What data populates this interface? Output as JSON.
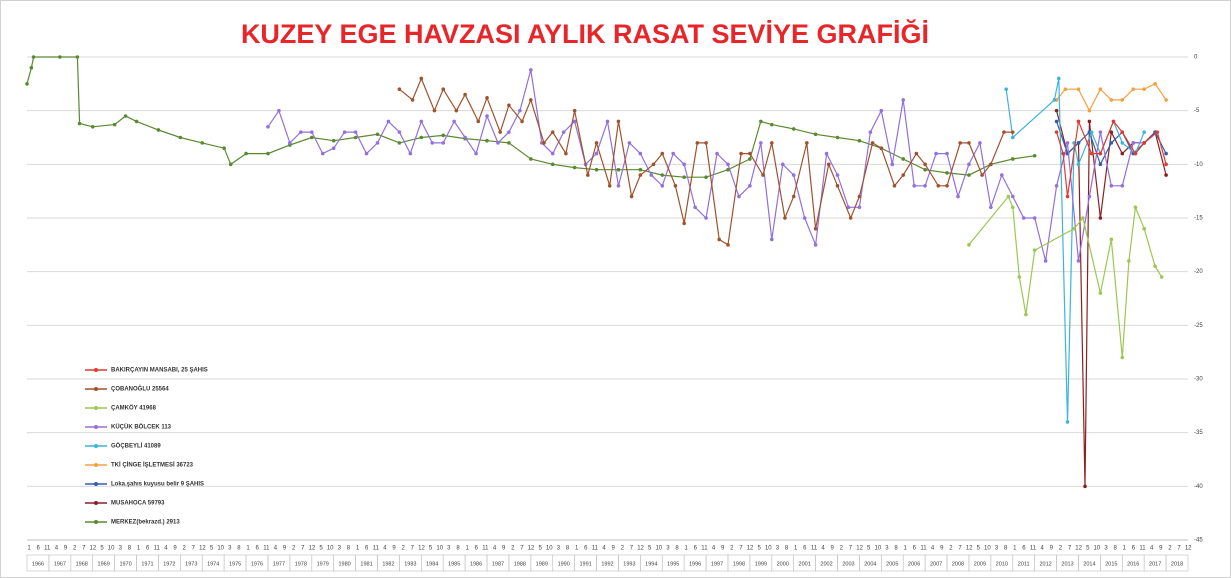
{
  "chart_data": {
    "type": "line",
    "title": "KUZEY EGE HAVZASI AYLIK RASAT SEVİYE GRAFİĞİ",
    "xlim": [
      1966,
      2019
    ],
    "ylim": [
      -45,
      0
    ],
    "yticks": [
      0,
      -5,
      -10,
      -15,
      -20,
      -25,
      -30,
      -35,
      -40,
      -45
    ],
    "xticks": [
      1966,
      1967,
      1968,
      1969,
      1970,
      1971,
      1972,
      1973,
      1974,
      1975,
      1976,
      1977,
      1978,
      1979,
      1980,
      1981,
      1982,
      1983,
      1984,
      1985,
      1986,
      1987,
      1988,
      1989,
      1990,
      1991,
      1992,
      1993,
      1994,
      1995,
      1996,
      1997,
      1998,
      1999,
      2000,
      2001,
      2002,
      2003,
      2004,
      2005,
      2006,
      2007,
      2008,
      2009,
      2010,
      2011,
      2012,
      2013,
      2014,
      2015,
      2016,
      2017,
      2018
    ],
    "xminor_labels": [
      "1",
      "6",
      "11",
      "4",
      "9",
      "2",
      "7",
      "12",
      "5",
      "10",
      "3",
      "8",
      "1",
      "6",
      "11",
      "4",
      "9",
      "2",
      "7",
      "12",
      "5",
      "10",
      "3",
      "8",
      "1",
      "6",
      "11",
      "4",
      "9",
      "2",
      "7",
      "12",
      "5",
      "10",
      "3",
      "8",
      "1",
      "6",
      "11",
      "4",
      "9",
      "2",
      "7",
      "12",
      "5",
      "10",
      "3",
      "8",
      "1",
      "6",
      "11",
      "4",
      "9",
      "2",
      "7",
      "12",
      "5",
      "10",
      "3",
      "8",
      "1",
      "6",
      "11",
      "4",
      "9",
      "2",
      "7",
      "12",
      "5",
      "10",
      "3",
      "8",
      "1",
      "6",
      "11",
      "4",
      "9",
      "2",
      "7",
      "12",
      "5",
      "10",
      "3",
      "8",
      "1",
      "6",
      "11",
      "4",
      "9",
      "2",
      "7",
      "12",
      "5",
      "10",
      "3",
      "8",
      "1",
      "6",
      "11",
      "4",
      "9",
      "2",
      "7",
      "12",
      "5",
      "10",
      "3",
      "8",
      "1",
      "6",
      "11",
      "4",
      "9",
      "2",
      "7",
      "12",
      "5",
      "10",
      "3",
      "8",
      "1",
      "6",
      "11",
      "4",
      "9",
      "2",
      "7",
      "12"
    ],
    "grid": true,
    "legend": "left",
    "series": [
      {
        "name": "BAKIRÇAYIN MANSABI, 25 ŞAHIS",
        "color": "#e23b2e",
        "x": [
          2013.0,
          2013.3,
          2013.5,
          2014.0,
          2014.6,
          2015.0,
          2015.6,
          2016.0,
          2016.6,
          2017.0,
          2017.6,
          2018.0
        ],
        "values": [
          -7,
          -9,
          -13,
          -6,
          -9,
          -9,
          -6,
          -7,
          -9,
          -8,
          -7,
          -10
        ]
      },
      {
        "name": "ÇOBANOĞLU 25564",
        "color": "#a0522d",
        "x": [
          1983.0,
          1983.6,
          1984.0,
          1984.6,
          1985.0,
          1985.6,
          1986.0,
          1986.6,
          1987.0,
          1987.6,
          1988.0,
          1988.6,
          1989.0,
          1989.6,
          1990.0,
          1990.6,
          1991.0,
          1991.6,
          1992.0,
          1992.6,
          1993.0,
          1993.6,
          1994.0,
          1994.6,
          1995.0,
          1995.6,
          1996.0,
          1996.6,
          1997.0,
          1997.6,
          1998.0,
          1998.6,
          1999.0,
          1999.6,
          2000.0,
          2000.6,
          2001.0,
          2001.6,
          2002.0,
          2002.6,
          2003.0,
          2003.6,
          2004.0,
          2004.6,
          2005.0,
          2005.6,
          2006.0,
          2006.6,
          2007.0,
          2007.6,
          2008.0,
          2008.6,
          2009.0,
          2009.6,
          2010.0,
          2010.6,
          2011.0
        ],
        "values": [
          -3,
          -4,
          -2,
          -5,
          -3,
          -5,
          -3.5,
          -6,
          -3.8,
          -7,
          -4.5,
          -6,
          -4,
          -8,
          -7,
          -9,
          -5,
          -11,
          -8,
          -12,
          -6,
          -13,
          -11,
          -10,
          -9,
          -12,
          -15.5,
          -8,
          -8,
          -17,
          -17.5,
          -9,
          -9,
          -11,
          -8,
          -15,
          -13,
          -8,
          -16,
          -10,
          -12,
          -15,
          -13,
          -8,
          -8.5,
          -12,
          -11,
          -9,
          -10,
          -12,
          -12,
          -8,
          -8,
          -11,
          -10,
          -7,
          -7
        ]
      },
      {
        "name": "ÇAMKÖY 41968",
        "color": "#9bc850",
        "x": [
          2009.0,
          2010.8,
          2011.0,
          2011.3,
          2011.6,
          2012.0,
          2013.8,
          2014.2,
          2015.0,
          2015.5,
          2016.0,
          2016.3,
          2016.6,
          2017.0,
          2017.5,
          2017.8
        ],
        "values": [
          -17.5,
          -13,
          -14,
          -20.5,
          -24,
          -18,
          -16,
          -15,
          -22,
          -17,
          -28,
          -19,
          -14,
          -16,
          -19.5,
          -20.5
        ]
      },
      {
        "name": "KÜÇÜK BÖLCEK 113",
        "color": "#9370db",
        "x": [
          1977.0,
          1977.5,
          1978.0,
          1978.5,
          1979.0,
          1979.5,
          1980.0,
          1980.5,
          1981.0,
          1981.5,
          1982.0,
          1982.5,
          1983.0,
          1983.5,
          1984.0,
          1984.5,
          1985.0,
          1985.5,
          1986.0,
          1986.5,
          1987.0,
          1987.5,
          1988.0,
          1988.5,
          1989.0,
          1989.5,
          1990.0,
          1990.5,
          1991.0,
          1991.5,
          1992.0,
          1992.5,
          1993.0,
          1993.5,
          1994.0,
          1994.5,
          1995.0,
          1995.5,
          1996.0,
          1996.5,
          1997.0,
          1997.5,
          1998.0,
          1998.5,
          1999.0,
          1999.5,
          2000.0,
          2000.5,
          2001.0,
          2001.5,
          2002.0,
          2002.5,
          2003.0,
          2003.5,
          2004.0,
          2004.5,
          2005.0,
          2005.5,
          2006.0,
          2006.5,
          2007.0,
          2007.5,
          2008.0,
          2008.5,
          2009.0,
          2009.5,
          2010.0,
          2010.5,
          2011.0,
          2011.5,
          2012.0,
          2012.5,
          2013.0,
          2013.5,
          2014.0,
          2014.5,
          2015.0,
          2015.5,
          2016.0,
          2016.5,
          2017.0
        ],
        "values": [
          -6.5,
          -5,
          -8,
          -7,
          -7,
          -9,
          -8.5,
          -7,
          -7,
          -9,
          -8,
          -6,
          -7,
          -9,
          -6,
          -8,
          -8,
          -6,
          -7.5,
          -9,
          -5.5,
          -8,
          -7,
          -5,
          -1.2,
          -8,
          -9,
          -7,
          -6,
          -10,
          -9,
          -6,
          -12,
          -8,
          -9,
          -11,
          -12,
          -9,
          -10,
          -14,
          -15,
          -9,
          -10,
          -13,
          -12,
          -8,
          -17,
          -10,
          -11,
          -15,
          -17.5,
          -9,
          -11,
          -14,
          -14,
          -7,
          -5,
          -10,
          -4,
          -12,
          -12,
          -9,
          -9,
          -13,
          -10,
          -8,
          -14,
          -11,
          -13,
          -15,
          -15,
          -19,
          -12,
          -8,
          -19,
          -13,
          -7,
          -12,
          -12,
          -8,
          -8
        ]
      },
      {
        "name": "GÖÇBEYLİ 41089",
        "color": "#3cb4dc",
        "x": [
          2010.7,
          2011.0,
          2012.9,
          2013.1,
          2013.5,
          2013.8,
          2014.0,
          2014.6,
          2015.0,
          2015.6,
          2016.0,
          2016.6,
          2017.0
        ],
        "values": [
          -3,
          -7.5,
          -4,
          -2,
          -34,
          -8,
          -10,
          -7,
          -9,
          -6,
          -8,
          -9,
          -7
        ]
      },
      {
        "name": "TKİ ÇİNGE İŞLETMESİ 36723",
        "color": "#f5a040",
        "x": [
          2013.0,
          2013.4,
          2014.0,
          2014.5,
          2015.0,
          2015.5,
          2016.0,
          2016.5,
          2017.0,
          2017.5,
          2018.0
        ],
        "values": [
          -4,
          -3,
          -3,
          -5,
          -3,
          -4,
          -4,
          -3,
          -3,
          -2.5,
          -4
        ]
      },
      {
        "name": "Loka.şahıs kuyusu belir 9 ŞAHIS",
        "color": "#2f5fb0",
        "x": [
          2013.0,
          2013.5,
          2014.0,
          2014.5,
          2015.0,
          2015.5,
          2016.0,
          2016.5,
          2017.0,
          2017.5,
          2018.0
        ],
        "values": [
          -6,
          -9,
          -8,
          -7,
          -10,
          -8,
          -7,
          -9,
          -8,
          -7,
          -9
        ]
      },
      {
        "name": "MUSAHOCA 59793",
        "color": "#8b2020",
        "x": [
          2013.0,
          2013.5,
          2014.0,
          2014.3,
          2014.5,
          2015.0,
          2015.5,
          2016.0,
          2016.5,
          2017.0,
          2017.5,
          2018.0
        ],
        "values": [
          -5,
          -9,
          -8,
          -40,
          -6,
          -15,
          -7,
          -9,
          -8,
          -8,
          -7,
          -11
        ]
      },
      {
        "name": "MERKEZ(bekrazd.) 2913",
        "color": "#5a8a30",
        "x": [
          1966.0,
          1966.2,
          1966.3,
          1967.5,
          1968.3,
          1968.4,
          1969.0,
          1970.0,
          1970.5,
          1971.0,
          1972.0,
          1973.0,
          1974.0,
          1975.0,
          1975.3,
          1976.0,
          1977.0,
          1978.0,
          1979.0,
          1980.0,
          1981.0,
          1982.0,
          1983.0,
          1984.0,
          1985.0,
          1986.0,
          1987.0,
          1988.0,
          1989.0,
          1990.0,
          1991.0,
          1992.0,
          1993.0,
          1994.0,
          1995.0,
          1996.0,
          1997.0,
          1998.0,
          1999.0,
          1999.5,
          2000.0,
          2001.0,
          2002.0,
          2003.0,
          2004.0,
          2005.0,
          2006.0,
          2007.0,
          2008.0,
          2009.0,
          2010.0,
          2011.0,
          2012.0
        ],
        "values": [
          -2.5,
          -1,
          0,
          0,
          0,
          -6.2,
          -6.5,
          -6.3,
          -5.5,
          -6,
          -6.8,
          -7.5,
          -8,
          -8.5,
          -10,
          -9,
          -9,
          -8.2,
          -7.5,
          -7.8,
          -7.5,
          -7.2,
          -8,
          -7.5,
          -7.3,
          -7.6,
          -7.8,
          -8,
          -9.5,
          -10,
          -10.3,
          -10.5,
          -10.5,
          -10.5,
          -11,
          -11.2,
          -11.2,
          -10.5,
          -9.5,
          -6,
          -6.3,
          -6.7,
          -7.2,
          -7.5,
          -7.8,
          -8.5,
          -9.5,
          -10.5,
          -10.8,
          -11,
          -10,
          -9.5,
          -9.2
        ]
      }
    ]
  }
}
